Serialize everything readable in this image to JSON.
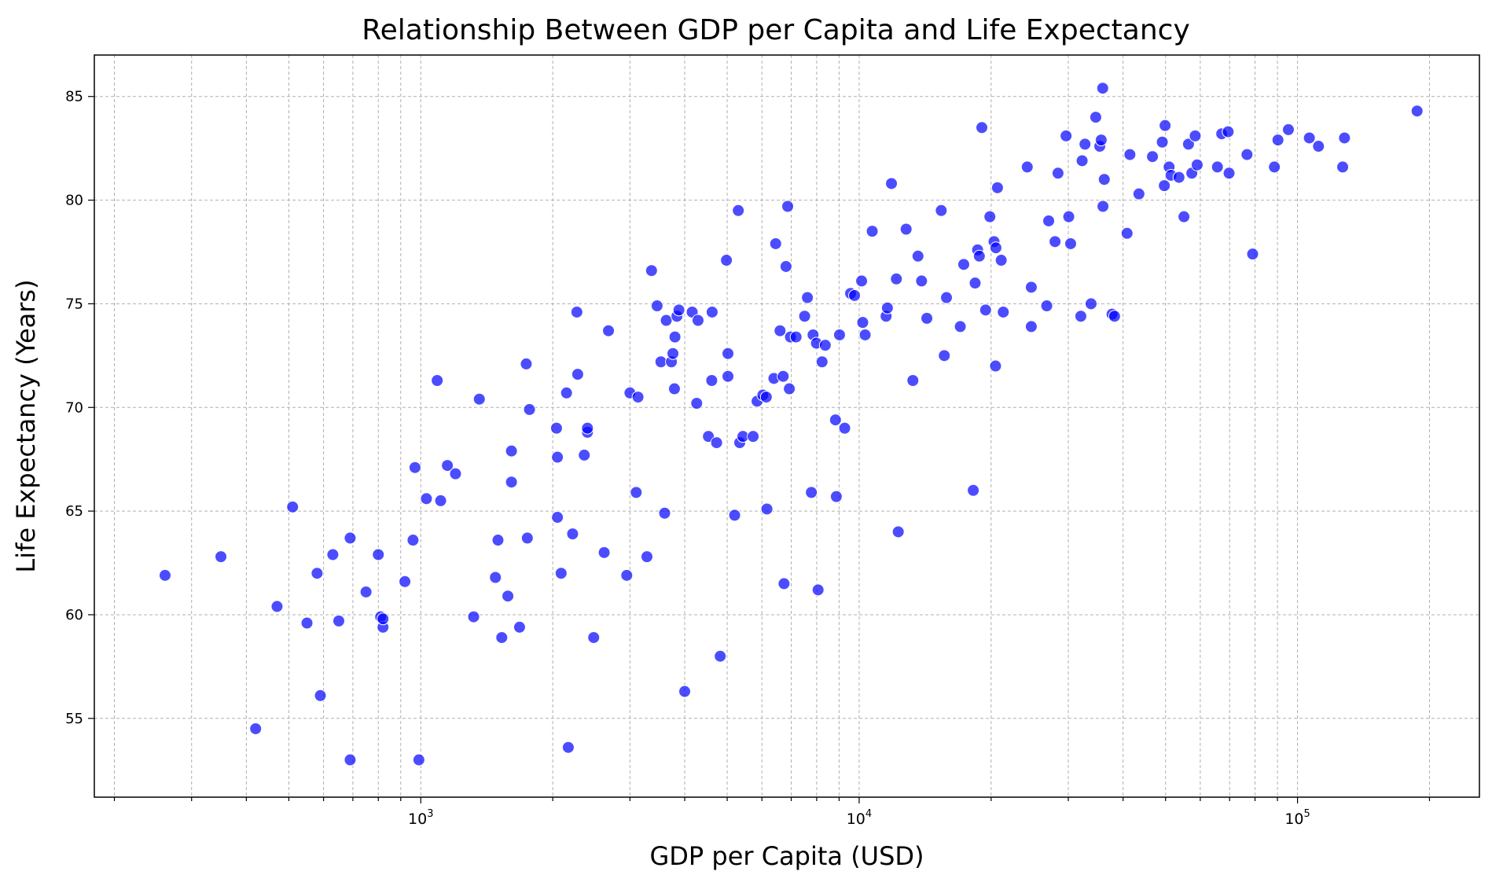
{
  "chart_data": {
    "type": "scatter",
    "title": "Relationship Between GDP per Capita and Life Expectancy",
    "xlabel": "GDP per Capita (USD)",
    "ylabel": "Life Expectancy (Years)",
    "x_scale": "log",
    "xlim": [
      180,
      260000
    ],
    "ylim": [
      51.2,
      87.0
    ],
    "x_major_ticks": [
      1000,
      10000,
      100000
    ],
    "x_tick_labels": [
      {
        "base": "10",
        "exp": "3"
      },
      {
        "base": "10",
        "exp": "4"
      },
      {
        "base": "10",
        "exp": "5"
      }
    ],
    "y_ticks": [
      55,
      60,
      65,
      70,
      75,
      80,
      85
    ],
    "y_tick_labels": [
      "55",
      "60",
      "65",
      "70",
      "75",
      "80",
      "85"
    ],
    "grid": true,
    "legend": "none",
    "marker_color": "#0000ff",
    "marker_alpha": 0.7,
    "series": [
      {
        "points": [
          [
            261,
            61.9
          ],
          [
            350,
            62.8
          ],
          [
            420,
            54.5
          ],
          [
            470,
            60.4
          ],
          [
            510,
            65.2
          ],
          [
            550,
            59.6
          ],
          [
            580,
            62.0
          ],
          [
            590,
            56.1
          ],
          [
            630,
            62.9
          ],
          [
            650,
            59.7
          ],
          [
            690,
            63.7
          ],
          [
            690,
            53.0
          ],
          [
            750,
            61.1
          ],
          [
            800,
            62.9
          ],
          [
            810,
            59.9
          ],
          [
            820,
            59.4
          ],
          [
            820,
            59.8
          ],
          [
            920,
            61.6
          ],
          [
            960,
            63.6
          ],
          [
            970,
            67.1
          ],
          [
            990,
            53.0
          ],
          [
            1030,
            65.6
          ],
          [
            1090,
            71.3
          ],
          [
            1110,
            65.5
          ],
          [
            1150,
            67.2
          ],
          [
            1200,
            66.8
          ],
          [
            1320,
            59.9
          ],
          [
            1360,
            70.4
          ],
          [
            1480,
            61.8
          ],
          [
            1500,
            63.6
          ],
          [
            1530,
            58.9
          ],
          [
            1580,
            60.9
          ],
          [
            1610,
            67.9
          ],
          [
            1610,
            66.4
          ],
          [
            1680,
            59.4
          ],
          [
            1740,
            72.1
          ],
          [
            1750,
            63.7
          ],
          [
            1770,
            69.9
          ],
          [
            2040,
            69.0
          ],
          [
            2050,
            67.6
          ],
          [
            2050,
            64.7
          ],
          [
            2090,
            62.0
          ],
          [
            2150,
            70.7
          ],
          [
            2170,
            53.6
          ],
          [
            2220,
            63.9
          ],
          [
            2270,
            74.6
          ],
          [
            2280,
            71.6
          ],
          [
            2360,
            67.7
          ],
          [
            2400,
            68.8
          ],
          [
            2400,
            69.0
          ],
          [
            2480,
            58.9
          ],
          [
            2620,
            63.0
          ],
          [
            2680,
            73.7
          ],
          [
            2950,
            61.9
          ],
          [
            3000,
            70.7
          ],
          [
            3100,
            65.9
          ],
          [
            3130,
            70.5
          ],
          [
            3280,
            62.8
          ],
          [
            3360,
            76.6
          ],
          [
            3460,
            74.9
          ],
          [
            3530,
            72.2
          ],
          [
            3600,
            64.9
          ],
          [
            3630,
            74.2
          ],
          [
            3730,
            72.2
          ],
          [
            3760,
            72.6
          ],
          [
            3790,
            70.9
          ],
          [
            3800,
            73.4
          ],
          [
            3840,
            74.4
          ],
          [
            3880,
            74.7
          ],
          [
            4000,
            56.3
          ],
          [
            4160,
            74.6
          ],
          [
            4260,
            70.2
          ],
          [
            4290,
            74.2
          ],
          [
            4530,
            68.6
          ],
          [
            4610,
            71.3
          ],
          [
            4620,
            74.6
          ],
          [
            4730,
            68.3
          ],
          [
            4820,
            58.0
          ],
          [
            4980,
            77.1
          ],
          [
            5020,
            72.6
          ],
          [
            5020,
            71.5
          ],
          [
            5200,
            64.8
          ],
          [
            5300,
            79.5
          ],
          [
            5340,
            68.3
          ],
          [
            5430,
            68.6
          ],
          [
            5730,
            68.6
          ],
          [
            5850,
            70.3
          ],
          [
            6030,
            70.6
          ],
          [
            6140,
            70.5
          ],
          [
            6160,
            65.1
          ],
          [
            6390,
            71.4
          ],
          [
            6450,
            77.9
          ],
          [
            6600,
            73.7
          ],
          [
            6710,
            71.5
          ],
          [
            6740,
            61.5
          ],
          [
            6810,
            76.8
          ],
          [
            6870,
            79.7
          ],
          [
            6930,
            70.9
          ],
          [
            6970,
            73.4
          ],
          [
            7180,
            73.4
          ],
          [
            7510,
            74.4
          ],
          [
            7620,
            75.3
          ],
          [
            7780,
            65.9
          ],
          [
            7850,
            73.5
          ],
          [
            7990,
            73.1
          ],
          [
            8060,
            61.2
          ],
          [
            8230,
            72.2
          ],
          [
            8370,
            73.0
          ],
          [
            8830,
            69.4
          ],
          [
            8870,
            65.7
          ],
          [
            9020,
            73.5
          ],
          [
            9270,
            69.0
          ],
          [
            9560,
            75.5
          ],
          [
            9760,
            75.4
          ],
          [
            10130,
            76.1
          ],
          [
            10190,
            74.1
          ],
          [
            10320,
            73.5
          ],
          [
            10710,
            78.5
          ],
          [
            11520,
            74.4
          ],
          [
            11600,
            74.8
          ],
          [
            11850,
            80.8
          ],
          [
            12160,
            76.2
          ],
          [
            12280,
            64.0
          ],
          [
            12800,
            78.6
          ],
          [
            13260,
            71.3
          ],
          [
            13620,
            77.3
          ],
          [
            13880,
            76.1
          ],
          [
            14270,
            74.3
          ],
          [
            15390,
            79.5
          ],
          [
            15640,
            72.5
          ],
          [
            15820,
            75.3
          ],
          [
            17010,
            73.9
          ],
          [
            17320,
            76.9
          ],
          [
            18210,
            66.0
          ],
          [
            18390,
            76.0
          ],
          [
            18630,
            77.6
          ],
          [
            18800,
            77.3
          ],
          [
            19050,
            83.5
          ],
          [
            19430,
            74.7
          ],
          [
            19870,
            79.2
          ],
          [
            20310,
            78.0
          ],
          [
            20470,
            72.0
          ],
          [
            20510,
            77.7
          ],
          [
            20680,
            80.6
          ],
          [
            21090,
            77.1
          ],
          [
            21320,
            74.6
          ],
          [
            24180,
            81.6
          ],
          [
            24700,
            75.8
          ],
          [
            24700,
            73.9
          ],
          [
            26790,
            74.9
          ],
          [
            27060,
            79.0
          ],
          [
            27980,
            78.0
          ],
          [
            28420,
            81.3
          ],
          [
            29650,
            83.1
          ],
          [
            30070,
            79.2
          ],
          [
            30370,
            77.9
          ],
          [
            32040,
            74.4
          ],
          [
            32260,
            81.9
          ],
          [
            32750,
            82.7
          ],
          [
            33810,
            75.0
          ],
          [
            34650,
            84.0
          ],
          [
            35390,
            82.6
          ],
          [
            35660,
            82.9
          ],
          [
            35940,
            85.4
          ],
          [
            35990,
            79.7
          ],
          [
            36240,
            81.0
          ],
          [
            37750,
            74.5
          ],
          [
            38250,
            74.4
          ],
          [
            40850,
            78.4
          ],
          [
            41460,
            82.2
          ],
          [
            43470,
            80.3
          ],
          [
            46680,
            82.1
          ],
          [
            49150,
            82.8
          ],
          [
            49680,
            80.7
          ],
          [
            49880,
            83.6
          ],
          [
            50940,
            81.6
          ],
          [
            51460,
            81.2
          ],
          [
            53650,
            81.1
          ],
          [
            55070,
            79.2
          ],
          [
            56400,
            82.7
          ],
          [
            57390,
            81.3
          ],
          [
            58420,
            83.1
          ],
          [
            59030,
            81.7
          ],
          [
            65660,
            81.6
          ],
          [
            67150,
            83.2
          ],
          [
            69460,
            83.3
          ],
          [
            69800,
            81.3
          ],
          [
            76690,
            82.2
          ],
          [
            79000,
            77.4
          ],
          [
            88570,
            81.6
          ],
          [
            90230,
            82.9
          ],
          [
            95320,
            83.4
          ],
          [
            106410,
            83.0
          ],
          [
            111660,
            82.6
          ],
          [
            126770,
            81.6
          ],
          [
            127990,
            83.0
          ],
          [
            187400,
            84.3
          ]
        ]
      }
    ]
  }
}
